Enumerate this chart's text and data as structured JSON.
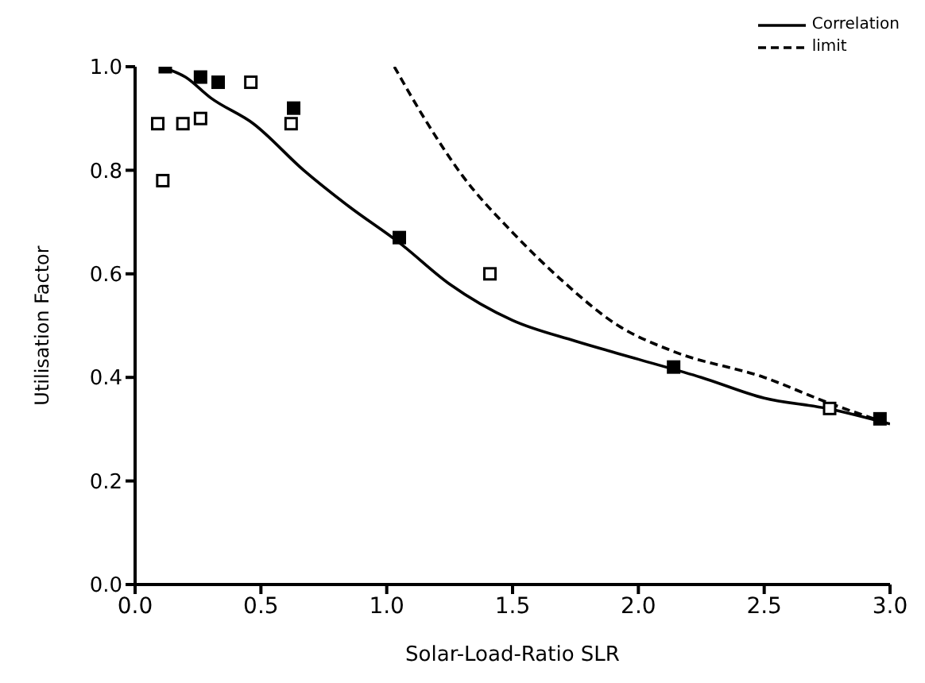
{
  "chart_data": {
    "type": "scatter",
    "xlabel": "Solar-Load-Ratio SLR",
    "ylabel": "Utilisation Factor",
    "xlim": [
      0,
      3
    ],
    "ylim": [
      0,
      1
    ],
    "xticks": [
      {
        "value": 0,
        "label": "0.0"
      },
      0.5,
      {
        "value": 1,
        "label": "1.0"
      },
      1.5,
      {
        "value": 2,
        "label": "2.0"
      },
      2.5,
      {
        "value": 3,
        "label": "3.0"
      }
    ],
    "yticks": [
      {
        "value": 0,
        "label": "0.0"
      },
      0.2,
      0.4,
      0.6,
      0.8,
      {
        "value": 1,
        "label": "1.0"
      }
    ],
    "grid": false,
    "legend": "top right",
    "series": [
      {
        "color": "#000000",
        "marker": "square",
        "x": [
          0.12,
          0.26,
          0.33,
          0.63,
          1.05,
          2.14,
          2.96
        ],
        "values": [
          1.0,
          0.98,
          0.97,
          0.92,
          0.67,
          0.42,
          0.32
        ]
      },
      {
        "color": "#000000",
        "marker": "square",
        "x": [
          0.09,
          0.11,
          0.19,
          0.26,
          0.46,
          0.62,
          1.41,
          2.76
        ],
        "values": [
          0.89,
          0.78,
          0.89,
          0.9,
          0.97,
          0.89,
          0.6,
          0.34
        ]
      },
      {
        "type": "line",
        "name": "Correlation",
        "color": "#000000",
        "marker": "none",
        "line_style": "solid",
        "x": [
          0.1,
          0.2,
          0.3,
          0.47,
          0.67,
          0.85,
          1.05,
          1.25,
          1.5,
          1.75,
          2.0,
          2.25,
          2.5,
          2.75,
          3.0
        ],
        "values": [
          1.0,
          0.98,
          0.94,
          0.89,
          0.8,
          0.73,
          0.66,
          0.58,
          0.51,
          0.47,
          0.435,
          0.4,
          0.36,
          0.34,
          0.31
        ]
      },
      {
        "type": "line",
        "name": "limit",
        "color": "#000000",
        "marker": "none",
        "line_style": "dashed",
        "x": [
          1.03,
          1.15,
          1.3,
          1.5,
          1.69,
          1.92,
          2.14,
          2.5,
          2.76,
          3.0
        ],
        "values": [
          1.0,
          0.9,
          0.79,
          0.68,
          0.59,
          0.5,
          0.45,
          0.4,
          0.35,
          0.31
        ]
      }
    ]
  }
}
